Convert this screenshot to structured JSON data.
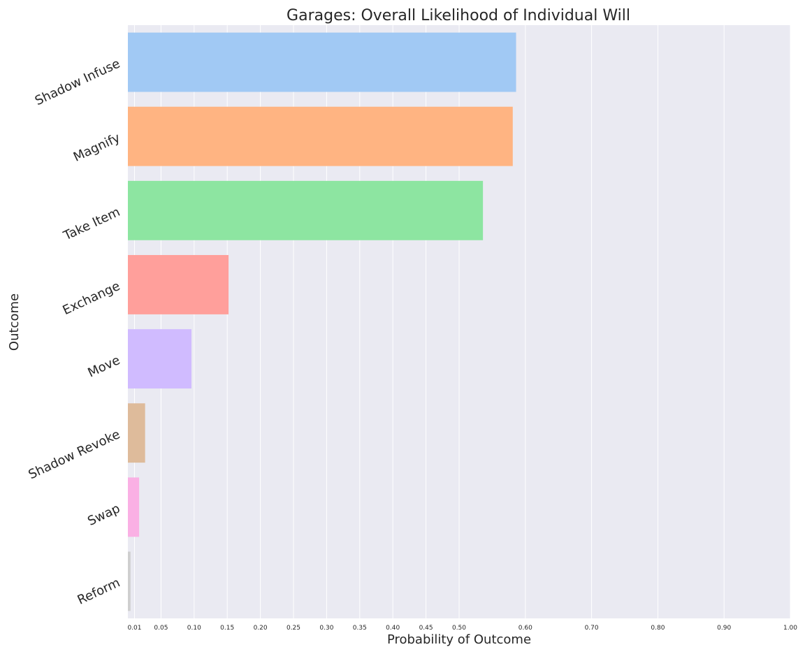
{
  "chart_data": {
    "type": "bar",
    "orientation": "horizontal",
    "title": "Garages: Overall Likelihood of Individual Will",
    "xlabel": "Probability of Outcome",
    "ylabel": "Outcome",
    "xlim": [
      0,
      1.0
    ],
    "xticks": [
      0.01,
      0.05,
      0.1,
      0.15,
      0.2,
      0.25,
      0.3,
      0.35,
      0.4,
      0.45,
      0.5,
      0.6,
      0.7,
      0.8,
      0.9,
      1.0
    ],
    "xtick_labels": [
      "0.01",
      "0.05",
      "0.10",
      "0.15",
      "0.20",
      "0.25",
      "0.30",
      "0.35",
      "0.40",
      "0.45",
      "0.50",
      "0.60",
      "0.70",
      "0.80",
      "0.90",
      "1.00"
    ],
    "grid": true,
    "categories": [
      "Shadow Infuse",
      "Magnify",
      "Take Item",
      "Exchange",
      "Move",
      "Shadow Revoke",
      "Swap",
      "Reform"
    ],
    "values": [
      0.586,
      0.581,
      0.536,
      0.152,
      0.096,
      0.026,
      0.017,
      0.004
    ],
    "colors": [
      "#a1c9f4",
      "#ffb482",
      "#8de5a1",
      "#ff9f9b",
      "#d0bbff",
      "#debb9b",
      "#fab0e4",
      "#cfcfcf"
    ],
    "background": "#eaeaf2"
  }
}
